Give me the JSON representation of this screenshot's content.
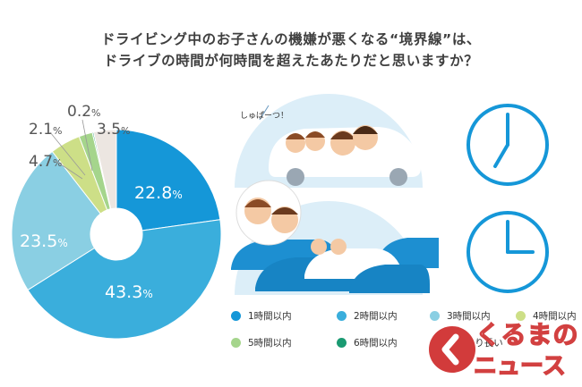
{
  "title": {
    "line1": "ドライビング中のお子さんの機嫌が悪くなる“境界線”は、",
    "line2": "ドライブの時間が何時間を超えたあたりだと思いますか？"
  },
  "illustration": {
    "speech": "しゅぱーつ！"
  },
  "logo": {
    "line1": "くるまの",
    "line2": "ニュース"
  },
  "chart_data": {
    "type": "pie",
    "title": "ドライビング中のお子さんの機嫌が悪くなる“境界線”は、ドライブの時間が何時間を超えたあたりだと思いますか？",
    "categories": [
      "1時間以内",
      "2時間以内",
      "3時間以内",
      "4時間以内",
      "5時間以内",
      "6時間以内",
      "それより長い"
    ],
    "values": [
      22.8,
      43.3,
      23.5,
      4.7,
      2.1,
      0.2,
      3.5
    ],
    "labels": [
      "22.8%",
      "43.3%",
      "23.5%",
      "4.7%",
      "2.1%",
      "0.2%",
      "3.5%"
    ],
    "colors": [
      "#1597d8",
      "#3aaedc",
      "#8acfe3",
      "#cddf87",
      "#a5d58c",
      "#1a9a72",
      "#ece6e1"
    ],
    "donut": true,
    "legend_position": "bottom-right"
  }
}
